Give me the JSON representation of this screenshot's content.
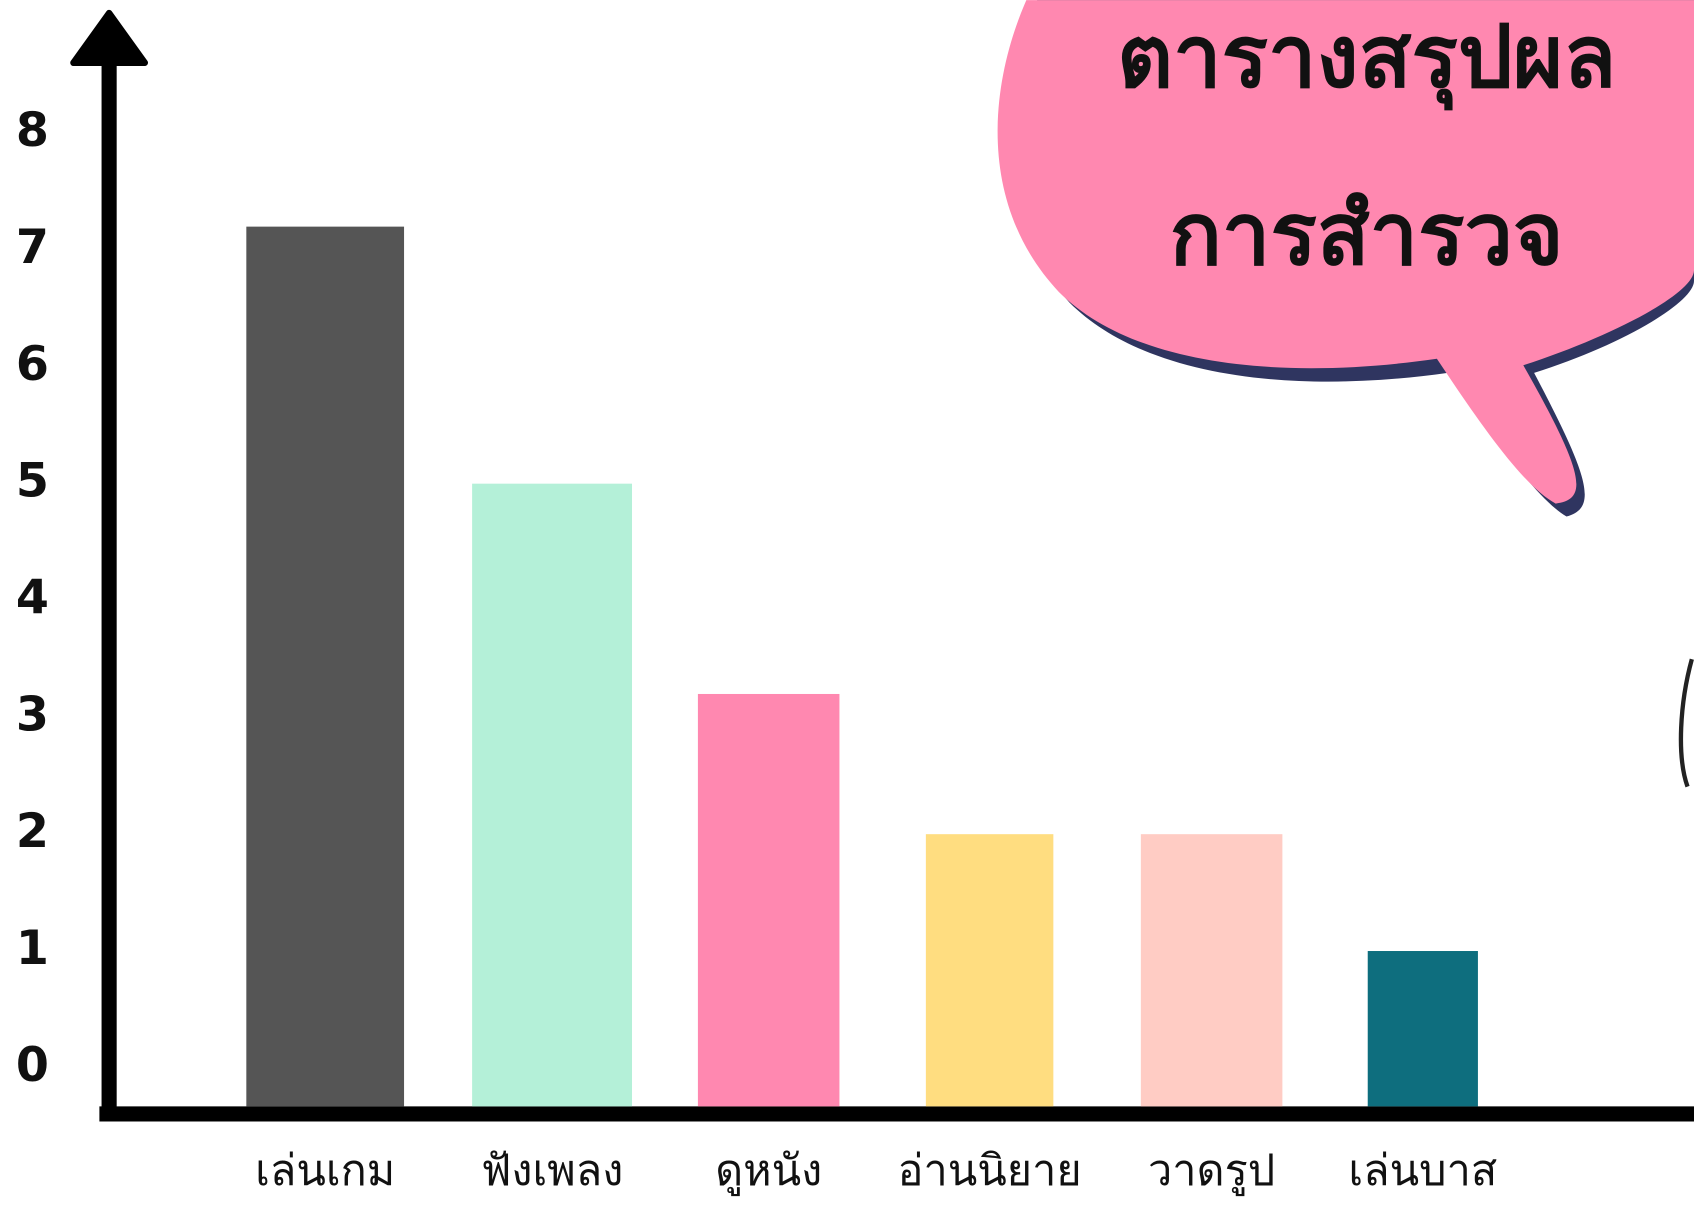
{
  "chart_data": {
    "type": "bar",
    "title_lines": [
      "ตารางสรุปผล",
      "การสำรวจ"
    ],
    "categories": [
      "เล่นเกม",
      "ฟังเพลง",
      "ดูหนัง",
      "อ่านนิยาย",
      "วาดรูป",
      "เล่นบาส"
    ],
    "values": [
      7.2,
      5,
      3.2,
      2,
      2,
      1
    ],
    "colors": [
      "#555555",
      "#b4f0d8",
      "#ff88b0",
      "#ffdd80",
      "#ffccc4",
      "#0e6e7e"
    ],
    "ylim": [
      -0.33,
      9
    ],
    "yticks": [
      0,
      1,
      2,
      3,
      4,
      5,
      6,
      7,
      8
    ],
    "grid": false
  }
}
